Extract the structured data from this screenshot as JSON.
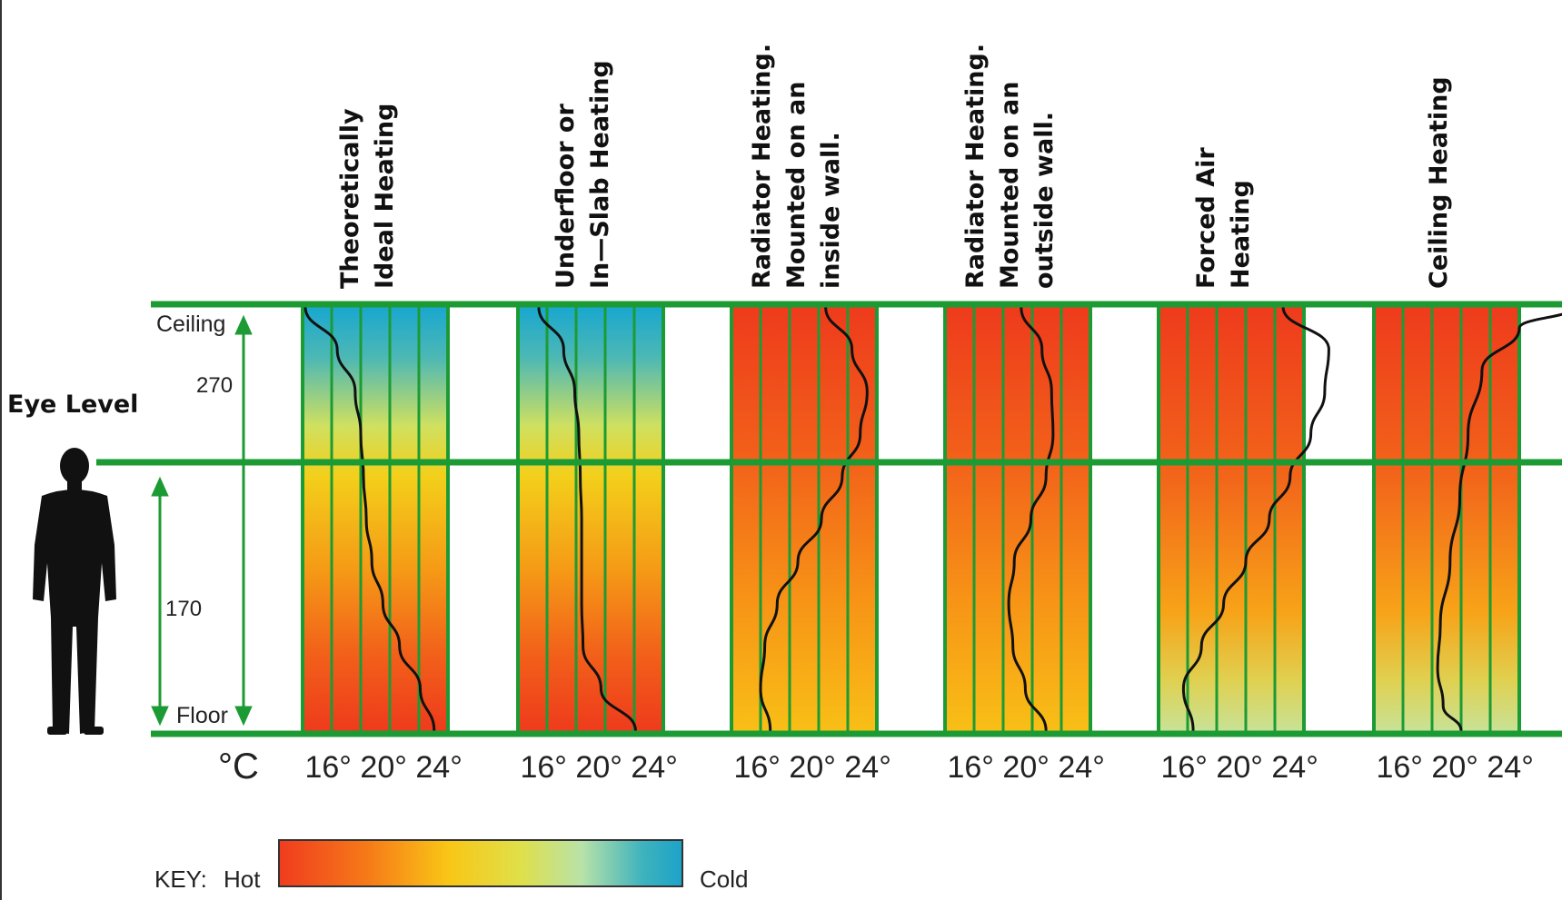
{
  "labels": {
    "eye_level": "Eye Level",
    "ceiling": "Ceiling",
    "floor": "Floor",
    "height_upper": "270",
    "height_lower": "170",
    "unit": "°C",
    "key": "KEY:",
    "hot": "Hot",
    "cold": "Cold"
  },
  "chart_data": {
    "type": "line",
    "x_ticks": [
      "16°",
      "20°",
      "24°"
    ],
    "xlim": [
      14,
      26
    ],
    "y_unit": "height",
    "key_gradient": [
      "#f03c1e",
      "#f67a18",
      "#f9c616",
      "#dfe04a",
      "#b8e2a8",
      "#3fb3bd",
      "#1ca2c9"
    ],
    "series": [
      {
        "name": "Theoretically Ideal Heating",
        "title_lines": [
          "Theoretically",
          "Ideal Heating"
        ],
        "fill": "ideal",
        "profile": [
          {
            "h": 1.0,
            "t": 14.2
          },
          {
            "h": 0.9,
            "t": 16.5
          },
          {
            "h": 0.8,
            "t": 17.8
          },
          {
            "h": 0.7,
            "t": 18.2
          },
          {
            "h": 0.6,
            "t": 18.4
          },
          {
            "h": 0.5,
            "t": 18.6
          },
          {
            "h": 0.4,
            "t": 19.0
          },
          {
            "h": 0.3,
            "t": 19.8
          },
          {
            "h": 0.2,
            "t": 21.0
          },
          {
            "h": 0.1,
            "t": 22.5
          },
          {
            "h": 0.0,
            "t": 23.5
          }
        ]
      },
      {
        "name": "Underfloor or In—Slab Heating",
        "title_lines": [
          "Underfloor or",
          "In—Slab Heating"
        ],
        "fill": "ideal",
        "profile": [
          {
            "h": 1.0,
            "t": 15.5
          },
          {
            "h": 0.9,
            "t": 17.3
          },
          {
            "h": 0.8,
            "t": 18.1
          },
          {
            "h": 0.7,
            "t": 18.4
          },
          {
            "h": 0.6,
            "t": 18.5
          },
          {
            "h": 0.5,
            "t": 18.6
          },
          {
            "h": 0.4,
            "t": 18.6
          },
          {
            "h": 0.3,
            "t": 18.6
          },
          {
            "h": 0.2,
            "t": 18.7
          },
          {
            "h": 0.1,
            "t": 20.0
          },
          {
            "h": 0.0,
            "t": 22.5
          }
        ]
      },
      {
        "name": "Radiator Heating. Mounted on an inside wall.",
        "title_lines": [
          "Radiator Heating.",
          "Mounted on an",
          "inside wall."
        ],
        "fill": "warm",
        "profile": [
          {
            "h": 1.0,
            "t": 20.8
          },
          {
            "h": 0.9,
            "t": 22.7
          },
          {
            "h": 0.8,
            "t": 23.8
          },
          {
            "h": 0.7,
            "t": 23.3
          },
          {
            "h": 0.6,
            "t": 22.0
          },
          {
            "h": 0.5,
            "t": 20.5
          },
          {
            "h": 0.4,
            "t": 18.8
          },
          {
            "h": 0.3,
            "t": 17.3
          },
          {
            "h": 0.2,
            "t": 16.4
          },
          {
            "h": 0.1,
            "t": 16.1
          },
          {
            "h": 0.0,
            "t": 16.8
          }
        ]
      },
      {
        "name": "Radiator Heating. Mounted on an outside wall.",
        "title_lines": [
          "Radiator Heating.",
          "Mounted on an",
          "outside wall."
        ],
        "fill": "warm",
        "profile": [
          {
            "h": 1.0,
            "t": 19.5
          },
          {
            "h": 0.9,
            "t": 21.0
          },
          {
            "h": 0.8,
            "t": 21.7
          },
          {
            "h": 0.7,
            "t": 21.8
          },
          {
            "h": 0.6,
            "t": 21.3
          },
          {
            "h": 0.5,
            "t": 20.2
          },
          {
            "h": 0.4,
            "t": 19.0
          },
          {
            "h": 0.3,
            "t": 18.6
          },
          {
            "h": 0.2,
            "t": 18.9
          },
          {
            "h": 0.1,
            "t": 19.8
          },
          {
            "h": 0.0,
            "t": 21.3
          }
        ]
      },
      {
        "name": "Forced Air Heating",
        "title_lines": [
          "Forced Air",
          "Heating"
        ],
        "fill": "warm_cool",
        "profile": [
          {
            "h": 1.0,
            "t": 23.0
          },
          {
            "h": 0.9,
            "t": 26.3
          },
          {
            "h": 0.8,
            "t": 26.0
          },
          {
            "h": 0.7,
            "t": 25.0
          },
          {
            "h": 0.6,
            "t": 23.5
          },
          {
            "h": 0.5,
            "t": 22.0
          },
          {
            "h": 0.4,
            "t": 20.3
          },
          {
            "h": 0.3,
            "t": 18.7
          },
          {
            "h": 0.2,
            "t": 17.1
          },
          {
            "h": 0.1,
            "t": 15.8
          },
          {
            "h": 0.0,
            "t": 16.5
          }
        ]
      },
      {
        "name": "Ceiling Heating",
        "title_lines": [
          "Ceiling Heating"
        ],
        "fill": "warm_cool",
        "profile": [
          {
            "h": 1.0,
            "t": 28.5
          },
          {
            "h": 0.95,
            "t": 24.5
          },
          {
            "h": 0.85,
            "t": 21.8
          },
          {
            "h": 0.7,
            "t": 20.8
          },
          {
            "h": 0.55,
            "t": 20.2
          },
          {
            "h": 0.4,
            "t": 19.5
          },
          {
            "h": 0.25,
            "t": 18.8
          },
          {
            "h": 0.15,
            "t": 18.6
          },
          {
            "h": 0.06,
            "t": 19.0
          },
          {
            "h": 0.0,
            "t": 20.3
          }
        ]
      }
    ]
  }
}
